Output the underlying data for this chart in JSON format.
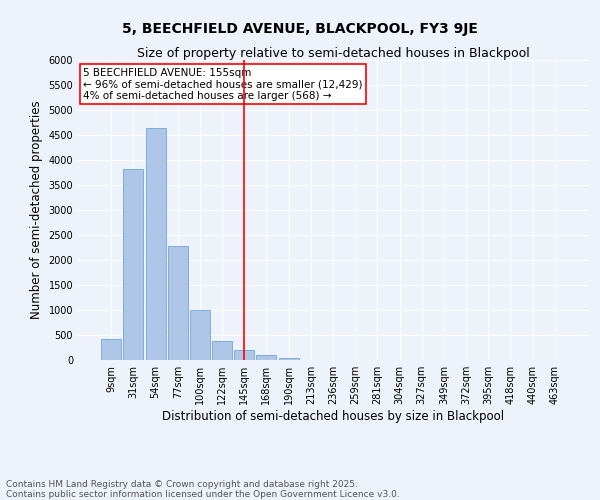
{
  "title": "5, BEECHFIELD AVENUE, BLACKPOOL, FY3 9JE",
  "subtitle": "Size of property relative to semi-detached houses in Blackpool",
  "xlabel": "Distribution of semi-detached houses by size in Blackpool",
  "ylabel": "Number of semi-detached properties",
  "categories": [
    "9sqm",
    "31sqm",
    "54sqm",
    "77sqm",
    "100sqm",
    "122sqm",
    "145sqm",
    "168sqm",
    "190sqm",
    "213sqm",
    "236sqm",
    "259sqm",
    "281sqm",
    "304sqm",
    "327sqm",
    "349sqm",
    "372sqm",
    "395sqm",
    "418sqm",
    "440sqm",
    "463sqm"
  ],
  "values": [
    430,
    3820,
    4650,
    2280,
    1000,
    390,
    200,
    110,
    40,
    10,
    5,
    2,
    1,
    0,
    0,
    0,
    0,
    0,
    0,
    0,
    0
  ],
  "bar_color": "#aec6e8",
  "bar_edge_color": "#5b9bd5",
  "vline_x": 6.0,
  "vline_color": "red",
  "annotation_title": "5 BEECHFIELD AVENUE: 155sqm",
  "annotation_line1": "← 96% of semi-detached houses are smaller (12,429)",
  "annotation_line2": "4% of semi-detached houses are larger (568) →",
  "box_color": "red",
  "ylim": [
    0,
    6000
  ],
  "yticks": [
    0,
    500,
    1000,
    1500,
    2000,
    2500,
    3000,
    3500,
    4000,
    4500,
    5000,
    5500,
    6000
  ],
  "footer_line1": "Contains HM Land Registry data © Crown copyright and database right 2025.",
  "footer_line2": "Contains public sector information licensed under the Open Government Licence v3.0.",
  "background_color": "#eef2fb",
  "grid_color": "#ffffff",
  "title_fontsize": 10,
  "subtitle_fontsize": 9,
  "axis_label_fontsize": 8.5,
  "tick_fontsize": 7,
  "annotation_fontsize": 7.5,
  "footer_fontsize": 6.5
}
